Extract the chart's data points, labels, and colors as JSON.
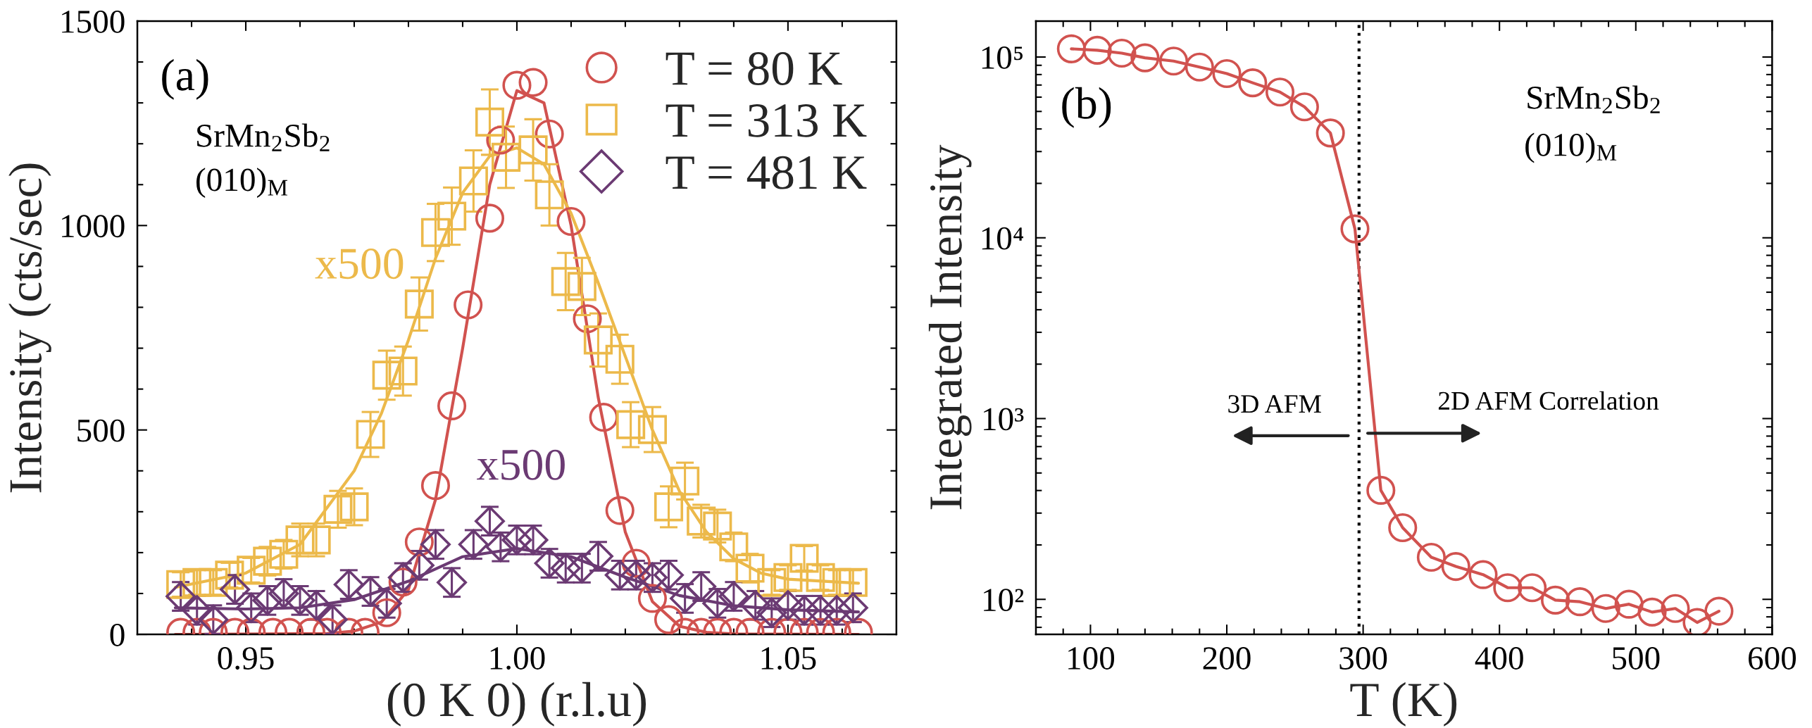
{
  "chart_data": [
    {
      "type": "scatter",
      "xlabel": "(0 K 0) (r.l.u)",
      "ylabel": "Intensity (cts/sec)",
      "xlim": [
        0.93,
        1.07
      ],
      "ylim": [
        0,
        1500
      ],
      "xticks": [
        {
          "value": 0.94,
          "label": null
        },
        0.95,
        {
          "value": 0.96,
          "label": null
        },
        {
          "value": 0.97,
          "label": null
        },
        {
          "value": 0.98,
          "label": null
        },
        {
          "value": 0.99,
          "label": null
        },
        {
          "value": 1.0,
          "label": "1.00"
        },
        {
          "value": 1.01,
          "label": null
        },
        {
          "value": 1.02,
          "label": null
        },
        {
          "value": 1.03,
          "label": null
        },
        {
          "value": 1.04,
          "label": null
        },
        1.05,
        {
          "value": 1.06,
          "label": null
        }
      ],
      "yticks": [
        0,
        {
          "value": 100,
          "label": null
        },
        {
          "value": 200,
          "label": null
        },
        {
          "value": 300,
          "label": null
        },
        {
          "value": 400,
          "label": null
        },
        500,
        {
          "value": 600,
          "label": null
        },
        {
          "value": 700,
          "label": null
        },
        {
          "value": 800,
          "label": null
        },
        {
          "value": 900,
          "label": null
        },
        1000,
        {
          "value": 1100,
          "label": null
        },
        {
          "value": 1200,
          "label": null
        },
        {
          "value": 1300,
          "label": null
        },
        {
          "value": 1400,
          "label": null
        },
        1500
      ],
      "legend": "top right",
      "annotations": [
        "(a)",
        "SrMn$_{2}$Sb$_{2}$",
        "(010)$_{M}$",
        "x500",
        "x500"
      ],
      "series": [
        {
          "name": "T = 80 K",
          "color": "#d1524f",
          "x": [
            0.938,
            0.941,
            0.944,
            0.948,
            0.951,
            0.955,
            0.958,
            0.962,
            0.965,
            0.969,
            0.972,
            0.976,
            0.979,
            0.982,
            0.985,
            0.988,
            0.991,
            0.995,
            0.997,
            1.0,
            1.003,
            1.006,
            1.01,
            1.013,
            1.016,
            1.019,
            1.022,
            1.025,
            1.028,
            1.031,
            1.034,
            1.037,
            1.04,
            1.043,
            1.047,
            1.05,
            1.053,
            1.056,
            1.059,
            1.063
          ],
          "values": [
            5,
            5,
            5,
            5,
            5,
            5,
            5,
            5,
            5,
            5,
            5,
            53,
            128,
            226,
            364,
            559,
            806,
            1018,
            1209,
            1343,
            1350,
            1224,
            1010,
            772,
            531,
            303,
            174,
            88,
            36,
            5,
            5,
            5,
            5,
            5,
            5,
            5,
            5,
            5,
            5,
            5
          ],
          "marker": "circle"
        },
        {
          "name": "T = 313 K",
          "color": "#ecb94a",
          "marker": "square",
          "x": [
            0.938,
            0.941,
            0.944,
            0.947,
            0.951,
            0.954,
            0.957,
            0.96,
            0.963,
            0.967,
            0.97,
            0.973,
            0.976,
            0.979,
            0.982,
            0.985,
            0.988,
            0.992,
            0.995,
            0.998,
            1.003,
            1.006,
            1.009,
            1.012,
            1.015,
            1.019,
            1.021,
            1.025,
            1.028,
            1.031,
            1.034,
            1.037,
            1.04,
            1.043,
            1.047,
            1.05,
            1.053,
            1.056,
            1.059,
            1.062
          ],
          "values": [
            122,
            127,
            127,
            145,
            157,
            179,
            196,
            231,
            231,
            306,
            312,
            489,
            634,
            644,
            808,
            983,
            1023,
            1109,
            1253,
            1167,
            1185,
            1075,
            863,
            851,
            720,
            673,
            513,
            501,
            312,
            375,
            277,
            265,
            214,
            162,
            127,
            139,
            186,
            139,
            127,
            127
          ],
          "errors": [
            30,
            30,
            30,
            30,
            30,
            35,
            35,
            40,
            40,
            45,
            45,
            55,
            60,
            60,
            65,
            70,
            70,
            75,
            80,
            75,
            75,
            75,
            70,
            70,
            65,
            60,
            55,
            55,
            50,
            45,
            40,
            40,
            35,
            35,
            30,
            30,
            30,
            30,
            30,
            30
          ]
        },
        {
          "name": "T = 481 K",
          "color": "#6b3a73",
          "marker": "diamond",
          "x": [
            0.938,
            0.941,
            0.944,
            0.948,
            0.951,
            0.954,
            0.957,
            0.96,
            0.963,
            0.966,
            0.969,
            0.973,
            0.976,
            0.979,
            0.982,
            0.985,
            0.988,
            0.992,
            0.995,
            0.997,
            1.0,
            1.003,
            1.006,
            1.009,
            1.012,
            1.015,
            1.019,
            1.022,
            1.025,
            1.028,
            1.031,
            1.034,
            1.037,
            1.04,
            1.044,
            1.047,
            1.05,
            1.053,
            1.056,
            1.059,
            1.062
          ],
          "values": [
            93,
            59,
            36,
            110,
            65,
            83,
            100,
            83,
            71,
            36,
            122,
            105,
            76,
            139,
            169,
            220,
            127,
            220,
            277,
            214,
            231,
            231,
            174,
            162,
            162,
            191,
            145,
            145,
            139,
            145,
            88,
            117,
            76,
            93,
            71,
            53,
            71,
            59,
            59,
            59,
            65
          ],
          "errors": [
            35,
            35,
            35,
            35,
            35,
            35,
            35,
            35,
            35,
            35,
            35,
            35,
            35,
            35,
            35,
            35,
            35,
            35,
            35,
            35,
            35,
            35,
            35,
            35,
            35,
            35,
            35,
            35,
            35,
            35,
            35,
            35,
            35,
            35,
            35,
            35,
            35,
            35,
            35,
            35,
            35
          ]
        },
        {
          "type": "line",
          "color": "#d1524f",
          "x": [
            0.937,
            0.965,
            0.97,
            0.975,
            0.98,
            0.985,
            0.99,
            0.995,
            1.0,
            1.005,
            1.01,
            1.015,
            1.02,
            1.025,
            1.03,
            1.035,
            1.04,
            1.063
          ],
          "values": [
            0,
            2,
            8,
            30,
            110,
            330,
            700,
            1100,
            1330,
            1300,
            1000,
            580,
            250,
            80,
            20,
            5,
            1,
            0
          ]
        },
        {
          "type": "line",
          "color": "#ecb94a",
          "x": [
            0.937,
            0.95,
            0.96,
            0.97,
            0.975,
            0.98,
            0.985,
            0.99,
            0.995,
            1.0,
            1.005,
            1.01,
            1.015,
            1.02,
            1.025,
            1.03,
            1.035,
            1.04,
            1.045,
            1.05,
            1.063
          ],
          "values": [
            115,
            150,
            220,
            400,
            540,
            720,
            920,
            1080,
            1170,
            1190,
            1150,
            1030,
            860,
            680,
            500,
            350,
            250,
            185,
            150,
            135,
            125
          ]
        },
        {
          "type": "line",
          "color": "#6b3a73",
          "x": [
            0.937,
            0.95,
            0.96,
            0.97,
            0.98,
            0.99,
            1.0,
            1.01,
            1.02,
            1.03,
            1.04,
            1.05,
            1.063
          ],
          "values": [
            65,
            62,
            65,
            85,
            130,
            190,
            210,
            190,
            140,
            95,
            70,
            60,
            55
          ]
        }
      ]
    },
    {
      "type": "line",
      "xlabel": "T (K)",
      "ylabel": "Integrated Intensity",
      "log": "y",
      "xlim": [
        60,
        600
      ],
      "ylim": [
        64,
        158000
      ],
      "xticks": [
        {
          "value": 80,
          "label": null
        },
        100,
        {
          "value": 120,
          "label": null
        },
        {
          "value": 140,
          "label": null
        },
        {
          "value": 160,
          "label": null
        },
        {
          "value": 180,
          "label": null
        },
        200,
        {
          "value": 220,
          "label": null
        },
        {
          "value": 240,
          "label": null
        },
        {
          "value": 260,
          "label": null
        },
        {
          "value": 280,
          "label": null
        },
        300,
        {
          "value": 320,
          "label": null
        },
        {
          "value": 340,
          "label": null
        },
        {
          "value": 360,
          "label": null
        },
        {
          "value": 380,
          "label": null
        },
        400,
        {
          "value": 420,
          "label": null
        },
        {
          "value": 440,
          "label": null
        },
        {
          "value": 460,
          "label": null
        },
        {
          "value": 480,
          "label": null
        },
        500,
        {
          "value": 520,
          "label": null
        },
        {
          "value": 540,
          "label": null
        },
        {
          "value": 560,
          "label": null
        },
        {
          "value": 580,
          "label": null
        },
        600
      ],
      "yticks": [
        {
          "value": 70,
          "label": null
        },
        {
          "value": 80,
          "label": null
        },
        {
          "value": 90,
          "label": null
        },
        {
          "value": 100,
          "label": "10²"
        },
        {
          "value": 200,
          "label": null
        },
        {
          "value": 300,
          "label": null
        },
        {
          "value": 400,
          "label": null
        },
        {
          "value": 500,
          "label": null
        },
        {
          "value": 600,
          "label": null
        },
        {
          "value": 700,
          "label": null
        },
        {
          "value": 800,
          "label": null
        },
        {
          "value": 900,
          "label": null
        },
        {
          "value": 1000,
          "label": "10³"
        },
        {
          "value": 2000,
          "label": null
        },
        {
          "value": 3000,
          "label": null
        },
        {
          "value": 4000,
          "label": null
        },
        {
          "value": 5000,
          "label": null
        },
        {
          "value": 6000,
          "label": null
        },
        {
          "value": 7000,
          "label": null
        },
        {
          "value": 8000,
          "label": null
        },
        {
          "value": 9000,
          "label": null
        },
        {
          "value": 10000,
          "label": "10⁴"
        },
        {
          "value": 20000,
          "label": null
        },
        {
          "value": 30000,
          "label": null
        },
        {
          "value": 40000,
          "label": null
        },
        {
          "value": 50000,
          "label": null
        },
        {
          "value": 60000,
          "label": null
        },
        {
          "value": 70000,
          "label": null
        },
        {
          "value": 80000,
          "label": null
        },
        {
          "value": 90000,
          "label": null
        },
        {
          "value": 100000,
          "label": "10⁵"
        }
      ],
      "ref_lines": [
        {
          "axis": "x",
          "value": 297,
          "line_style": "dotted",
          "color": "#000000"
        }
      ],
      "annotations": [
        "(b)",
        "SrMn$_{2}$Sb$_{2}$",
        "(010)$_{M}$",
        "3D AFM",
        "2D AFM Correlation"
      ],
      "series": [
        {
          "color": "#d1524f",
          "marker": "circle",
          "x": [
            86,
            105,
            123,
            140,
            161,
            180,
            200,
            219,
            239,
            257,
            276,
            294,
            313,
            329,
            350,
            368,
            388,
            406,
            424,
            441,
            459,
            478,
            495,
            512,
            529,
            545,
            561
          ],
          "values": [
            111000,
            109000,
            105000,
            99000,
            95000,
            88000,
            81000,
            72000,
            64000,
            53000,
            38000,
            11200,
            401,
            249,
            171,
            152,
            137,
            116,
            116,
            99,
            97,
            89,
            94,
            85,
            89,
            74.5,
            86
          ]
        }
      ]
    }
  ]
}
